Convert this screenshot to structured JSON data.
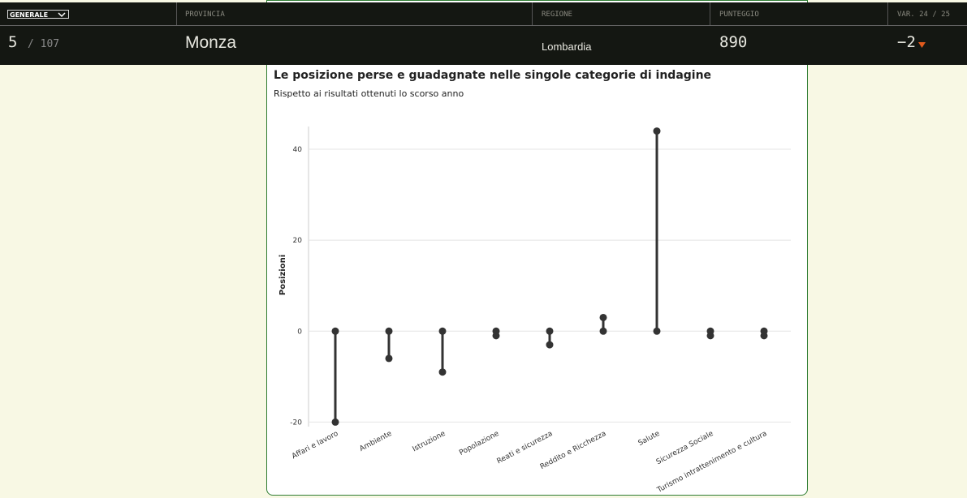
{
  "header": {
    "selector": "GENERALE",
    "columns": [
      "PROVINCIA",
      "REGIONE",
      "PUNTEGGIO",
      "VAR. 24 / 25"
    ],
    "rank": 5,
    "rank_of": "/ 107",
    "province": "Monza",
    "region": "Lombardia",
    "score": 890,
    "variation": "−2"
  },
  "chart_data": {
    "type": "dumbbell",
    "title": "Le posizione perse e guadagnate nelle singole categorie di indagine",
    "subtitle": "Rispetto ai risultati ottenuti lo scorso anno",
    "ylabel": "Posizioni",
    "categories": [
      "Affari e lavoro",
      "Ambiente",
      "Istruzione",
      "Popolazione",
      "Reati e sicurezza",
      "Reddito e Ricchezza",
      "Salute",
      "Sicurezza Sociale",
      "Turismo intrattenimento e cultura"
    ],
    "values": [
      -20,
      -6,
      -9,
      -1,
      -3,
      3,
      44,
      -1,
      -1
    ],
    "color": "#333333",
    "ylim": [
      -21,
      45
    ],
    "yticks": [
      -20,
      0,
      20,
      40
    ],
    "grid": true
  }
}
